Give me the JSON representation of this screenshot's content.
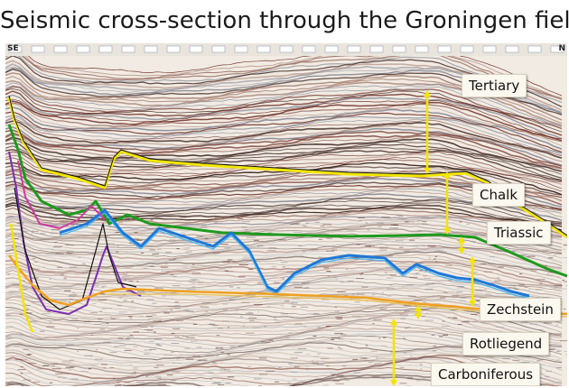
{
  "title": "Seismic cross-section through the Groningen field",
  "corner_left": "SE",
  "corner_right": "N",
  "units": [
    {
      "name": "Tertiary"
    },
    {
      "name": "Chalk"
    },
    {
      "name": "Triassic"
    },
    {
      "name": "Zechstein"
    },
    {
      "name": "Rotliegend"
    },
    {
      "name": "Carboniferous"
    }
  ],
  "colors": {
    "tertiary_base": "#f2e600",
    "chalk_base": "#1e9a1e",
    "triassic_base": "#1e78d8",
    "zechstein_base": "#f0a020",
    "salt_flank": "#7a2fb0",
    "arrow": "#f4e400"
  }
}
